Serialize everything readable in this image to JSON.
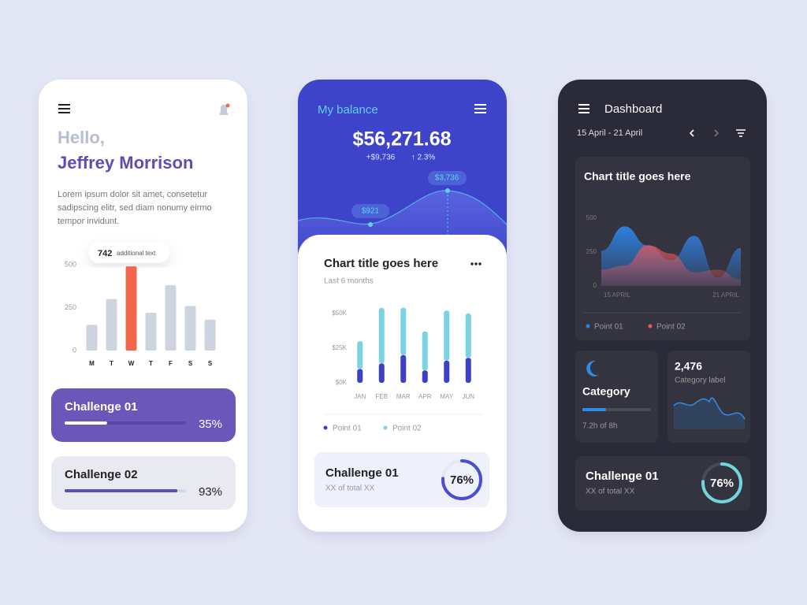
{
  "phones": [
    {
      "greeting": "Hello,",
      "name": "Jeffrey Morrison",
      "body": [
        "Lorem ipsum dolor sit amet, consetetur",
        "sadipscing elitr, sed diam nonumy eirmo",
        "tempor invidunt."
      ],
      "tooltip": {
        "value": 742,
        "text": "additional text"
      },
      "chart": {
        "type": "bar",
        "categories": [
          "M",
          "T",
          "W",
          "T",
          "F",
          "S",
          "S"
        ],
        "values": [
          150,
          300,
          490,
          220,
          380,
          260,
          180
        ],
        "colors": [
          "#cdd3df",
          "#cdd3df",
          "#f2674a",
          "#cdd3df",
          "#cdd3df",
          "#cdd3df",
          "#cdd3df"
        ],
        "ylim": [
          0,
          500
        ],
        "yticks": [
          0,
          250,
          500
        ]
      },
      "challenges": [
        {
          "title": "Challenge 01",
          "value": 35,
          "value_label": "35%"
        },
        {
          "title": "Challenge 02",
          "value": 93,
          "value_label": "93%"
        }
      ]
    },
    {
      "title": "My balance",
      "balance": "$56,271.68",
      "change": "+$9,736",
      "change_pct": "↑ 2.3%",
      "balance_points": [
        "$921",
        "$3,736"
      ],
      "chart": {
        "type": "stacked-bar",
        "title": "Chart title goes here",
        "subtitle": "Last 6 months",
        "categories": [
          "JAN",
          "FEB",
          "MAR",
          "APR",
          "MAY",
          "JUN"
        ],
        "series": [
          {
            "name": "Point 01",
            "color": "#3d3fc8",
            "values": [
              10000,
              14000,
              20000,
              9000,
              16000,
              18000
            ]
          },
          {
            "name": "Point 02",
            "color": "#79d3e3",
            "values": [
              20000,
              40000,
              34000,
              28000,
              36000,
              32000
            ]
          }
        ],
        "ylim": [
          0,
          55000
        ],
        "yticks": [
          {
            "value": 0,
            "label": "$0K"
          },
          {
            "value": 25000,
            "label": "$25K"
          },
          {
            "value": 50000,
            "label": "$50K"
          }
        ]
      },
      "challenge": {
        "title": "Challenge 01",
        "subtitle": "XX of total XX",
        "value": 76,
        "value_label": "76%"
      }
    },
    {
      "title": "Dashboard",
      "date_range": "15 April - 21 April",
      "chart": {
        "type": "area",
        "title": "Chart title goes here",
        "categories": [
          "15 APRIL",
          null,
          null,
          null,
          null,
          null,
          "21 APRIL"
        ],
        "series": [
          {
            "name": "Point 01",
            "color": "#2f7fe0",
            "values": [
              260,
              440,
              300,
              190,
              370,
              60,
              280
            ]
          },
          {
            "name": "Point 02",
            "color": "#e8585a",
            "values": [
              120,
              150,
              300,
              240,
              100,
              120,
              50
            ]
          }
        ],
        "ylim": [
          0,
          500
        ],
        "yticks": [
          0,
          250,
          500
        ]
      },
      "category": {
        "title": "Category",
        "caption": "7.2h of 8h"
      },
      "stat": {
        "value": "2,476",
        "label": "Category label"
      },
      "challenge": {
        "title": "Challenge 01",
        "subtitle": "XX of total XX",
        "value": 76,
        "value_label": "76%"
      }
    }
  ]
}
